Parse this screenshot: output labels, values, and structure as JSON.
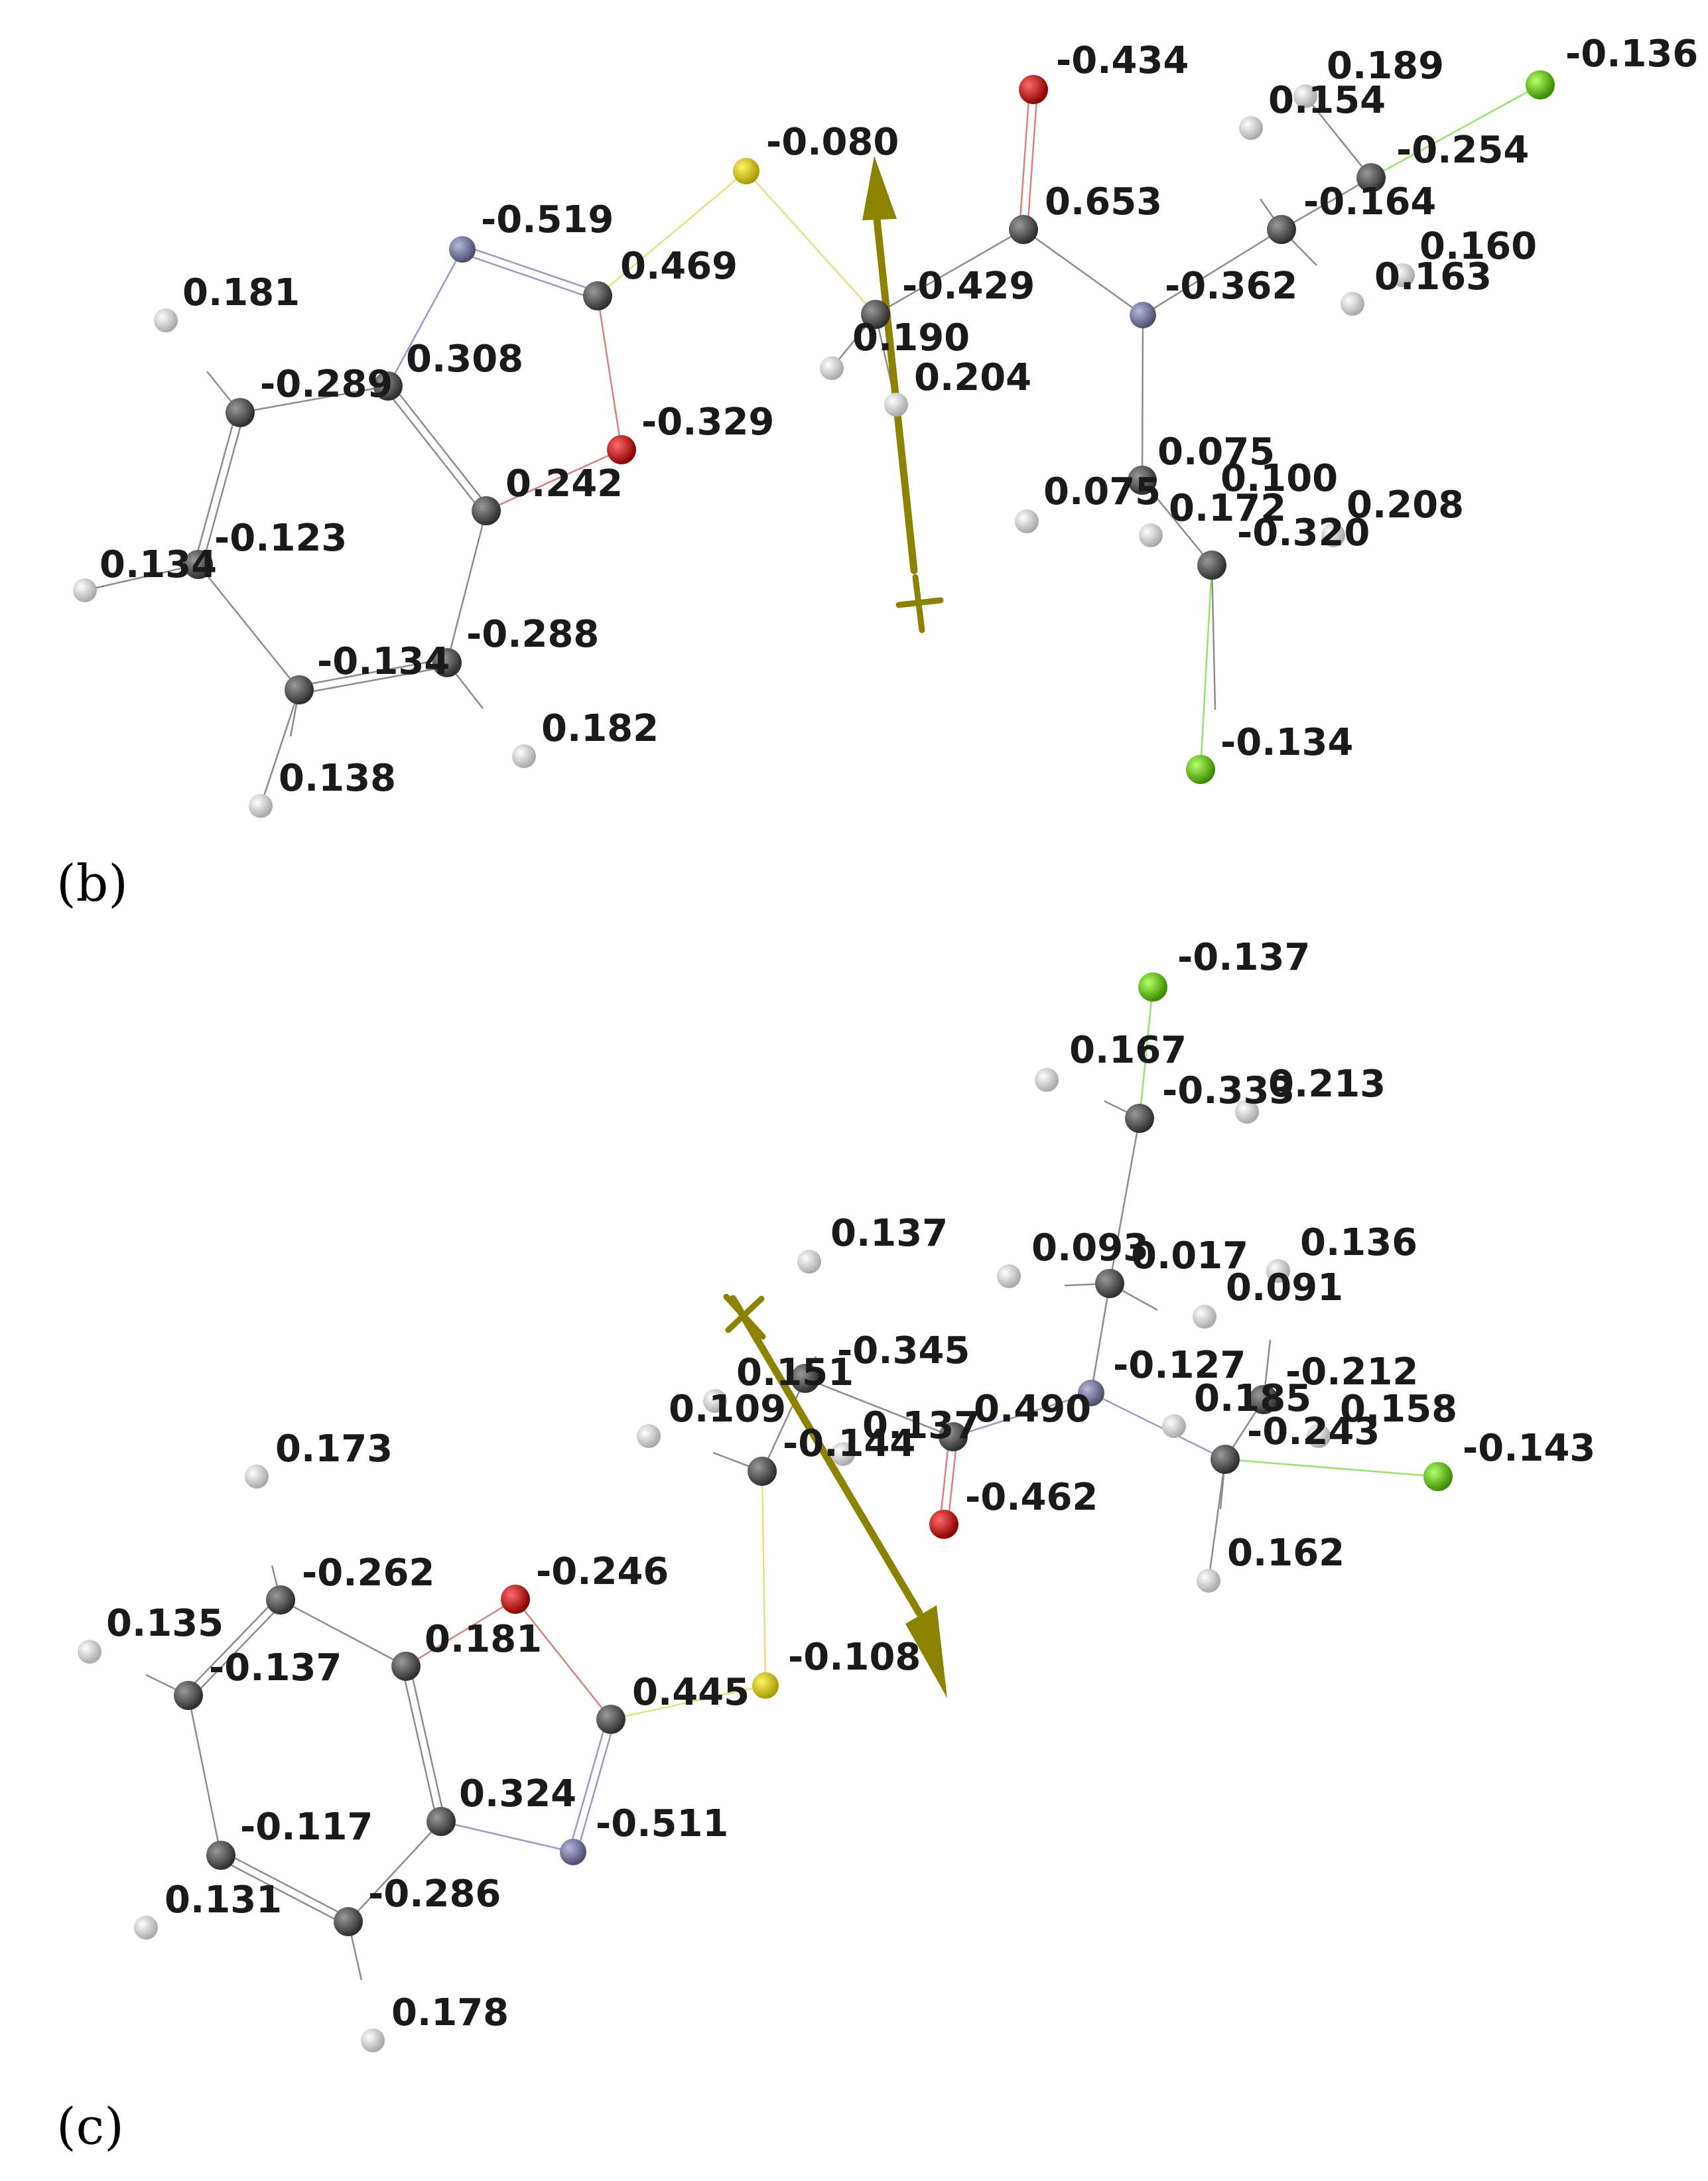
{
  "colors": {
    "carbon": "#505050",
    "hydrogen": "#d9d9d9",
    "nitrogen": "#6b6b90",
    "oxygen": "#c81414",
    "sulfur": "#d4c800",
    "chlorine": "#5ec816",
    "dipole": "#8b8300",
    "bond": "#8c8c8c"
  },
  "panels": [
    {
      "id": "b",
      "label": "(b)"
    },
    {
      "id": "c",
      "label": "(c)"
    }
  ],
  "molecule_b": {
    "labels": [
      "-0.434",
      "0.189",
      "0.154",
      "-0.136",
      "-0.254",
      "-0.080",
      "0.653",
      "-0.164",
      "0.160",
      "0.163",
      "-0.519",
      "0.469",
      "-0.429",
      "-0.362",
      "0.181",
      "0.190",
      "0.204",
      "0.308",
      "-0.289",
      "-0.329",
      "0.075",
      "0.242",
      "0.100",
      "0.208",
      "0.075",
      "0.172",
      "-0.320",
      "-0.123",
      "0.134",
      "-0.288",
      "-0.134",
      "0.182",
      "0.138",
      "-0.134"
    ]
  },
  "molecule_c": {
    "labels": [
      "-0.137",
      "0.167",
      "-0.333",
      "0.213",
      "0.137",
      "0.093",
      "0.017",
      "0.136",
      "0.091",
      "-0.345",
      "0.151",
      "-0.127",
      "-0.212",
      "0.109",
      "0.137",
      "0.490",
      "0.185",
      "0.158",
      "-0.144",
      "-0.243",
      "-0.143",
      "0.173",
      "-0.462",
      "0.162",
      "-0.262",
      "-0.246",
      "0.135",
      "0.181",
      "-0.137",
      "-0.108",
      "0.445",
      "0.324",
      "-0.511",
      "-0.117",
      "-0.286",
      "0.131",
      "0.178"
    ]
  }
}
